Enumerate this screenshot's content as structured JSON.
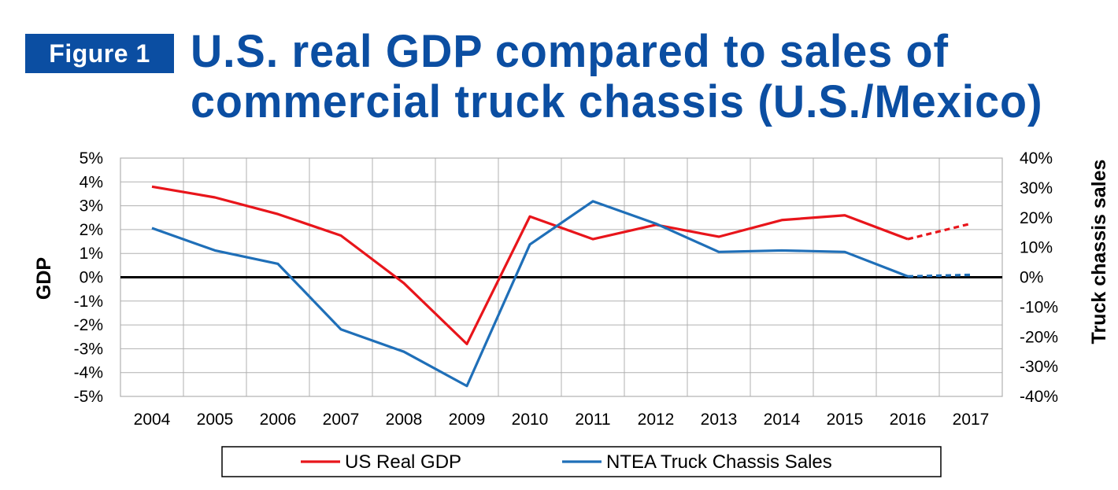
{
  "figure_label": "Figure 1",
  "title_lines": [
    "U.S. real GDP compared to sales of",
    "commercial truck chassis (U.S./Mexico)"
  ],
  "colors": {
    "brand_blue": "#0b4ea2",
    "gdp_red": "#e8151b",
    "chassis_blue": "#1f6fb8",
    "grid": "#b0b0b0"
  },
  "chart_data": {
    "type": "line",
    "categories": [
      "2004",
      "2005",
      "2006",
      "2007",
      "2008",
      "2009",
      "2010",
      "2011",
      "2012",
      "2013",
      "2014",
      "2015",
      "2016",
      "2017"
    ],
    "ylabel": "GDP",
    "y2label": "Truck chassis sales",
    "ylim": [
      -5,
      5
    ],
    "y2lim": [
      -40,
      40
    ],
    "yticks": [
      "5%",
      "4%",
      "3%",
      "2%",
      "1%",
      "0%",
      "-1%",
      "-2%",
      "-3%",
      "-4%",
      "-5%"
    ],
    "y2ticks": [
      "40%",
      "30%",
      "20%",
      "10%",
      "0%",
      "-10%",
      "-20%",
      "-30%",
      "-40%"
    ],
    "grid": true,
    "legend_position": "bottom",
    "forecast_from": "2016",
    "series": [
      {
        "name": "US Real GDP",
        "axis": "left",
        "color": "#e8151b",
        "values": [
          3.8,
          3.35,
          2.65,
          1.75,
          -0.25,
          -2.8,
          2.55,
          1.6,
          2.2,
          1.7,
          2.4,
          2.6,
          1.6,
          2.25
        ]
      },
      {
        "name": "NTEA Truck Chassis Sales",
        "axis": "right",
        "color": "#1f6fb8",
        "values": [
          16.5,
          9,
          4.5,
          -17.5,
          -25,
          -36.5,
          11,
          25.5,
          18,
          8.5,
          9,
          8.5,
          0.3,
          0.8
        ]
      }
    ]
  }
}
